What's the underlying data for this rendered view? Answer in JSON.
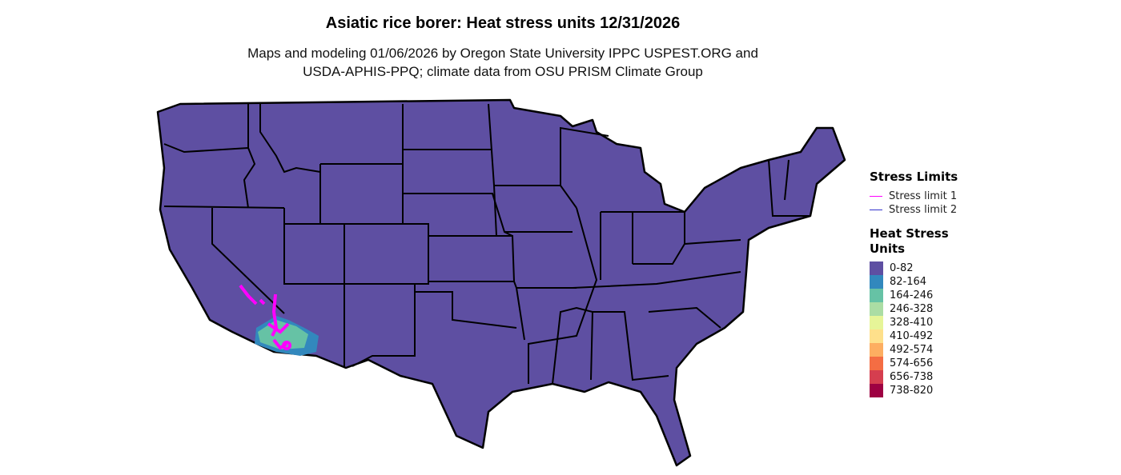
{
  "title": "Asiatic rice borer: Heat stress units 12/31/2026",
  "subtitle_line1": "Maps and modeling 01/06/2026 by Oregon State University IPPC USPEST.ORG and",
  "subtitle_line2": "USDA-APHIS-PPQ; climate data from OSU PRISM Climate Group",
  "legend": {
    "limits_title": "Stress Limits",
    "limits": [
      {
        "label": "Stress limit 1",
        "color": "#FF00FF"
      },
      {
        "label": "Stress limit 2",
        "color": "#3333CC"
      }
    ],
    "units_title_1": "Heat Stress",
    "units_title_2": "Units",
    "bins": [
      {
        "label": "0-82",
        "color": "#5E4FA2"
      },
      {
        "label": "82-164",
        "color": "#3288BD"
      },
      {
        "label": "164-246",
        "color": "#66C2A5"
      },
      {
        "label": "246-328",
        "color": "#ABDDA4"
      },
      {
        "label": "328-410",
        "color": "#E6F598"
      },
      {
        "label": "410-492",
        "color": "#FEE08B"
      },
      {
        "label": "492-574",
        "color": "#FDAE61"
      },
      {
        "label": "574-656",
        "color": "#F46D43"
      },
      {
        "label": "656-738",
        "color": "#D53E4F"
      },
      {
        "label": "738-820",
        "color": "#9E0142"
      }
    ]
  }
}
